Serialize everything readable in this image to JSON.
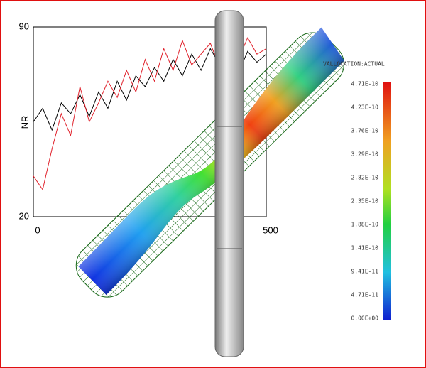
{
  "chart_data": {
    "type": "line",
    "ylabel": "NR",
    "x": [
      0,
      20,
      40,
      60,
      80,
      100,
      120,
      140,
      160,
      180,
      200,
      220,
      240,
      260,
      280,
      300,
      320,
      340,
      360,
      380,
      400,
      420,
      440,
      460,
      480,
      500
    ],
    "series": [
      {
        "color": "#000000",
        "values": [
          55,
          60,
          52,
          62,
          58,
          65,
          57,
          66,
          60,
          70,
          63,
          72,
          68,
          75,
          70,
          78,
          72,
          80,
          74,
          82,
          76,
          79,
          73,
          81,
          77,
          80
        ]
      },
      {
        "color": "#e0202a",
        "values": [
          35,
          30,
          45,
          58,
          50,
          68,
          55,
          62,
          70,
          64,
          74,
          66,
          78,
          70,
          82,
          74,
          85,
          76,
          80,
          84,
          75,
          83,
          78,
          86,
          80,
          82
        ]
      }
    ],
    "xlim": [
      0,
      500
    ],
    "xticks": [
      0,
      500
    ],
    "ylim": [
      20,
      90
    ],
    "yticks": [
      20,
      90
    ]
  },
  "colorbar": {
    "title": "VALLOCATION:ACTUAL",
    "labels": [
      "4.71E-10",
      "4.23E-10",
      "3.76E-10",
      "3.29E-10",
      "2.82E-10",
      "2.35E-10",
      "1.88E-10",
      "1.41E-10",
      "9.41E-11",
      "4.71E-11",
      "0.00E+00"
    ]
  }
}
